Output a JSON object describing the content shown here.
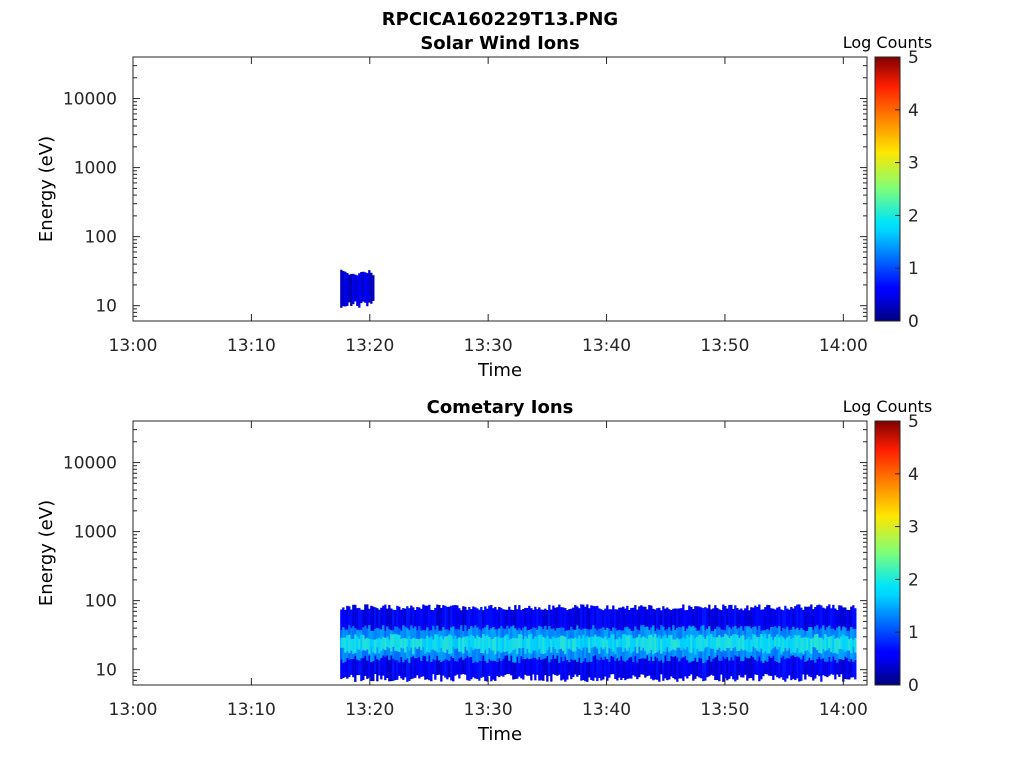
{
  "figure": {
    "title": "RPCICA160229T13.PNG"
  },
  "chart_data": [
    {
      "type": "heatmap",
      "title": "Solar Wind Ions",
      "xlabel": "Time",
      "ylabel": "Energy (eV)",
      "x_ticks": [
        "13:00",
        "13:10",
        "13:20",
        "13:30",
        "13:40",
        "13:50",
        "14:00"
      ],
      "xlim": [
        "13:00",
        "14:02"
      ],
      "y_scale": "log",
      "y_ticks": [
        "10",
        "100",
        "1000",
        "10000"
      ],
      "ylim": [
        6,
        40000
      ],
      "colorbar": {
        "label": "Log Counts",
        "ticks": [
          "0",
          "1",
          "2",
          "3",
          "4",
          "5"
        ],
        "range": [
          0,
          5
        ],
        "colormap": "jet"
      },
      "regions": [
        {
          "t_start": "13:17:30",
          "t_end": "13:20:15",
          "e_min": 11,
          "e_max": 30,
          "log_counts": 0.35
        },
        {
          "t_start": "13:17:40",
          "t_end": "13:20:05",
          "e_min": 40,
          "e_max": 80,
          "log_counts": 0.1,
          "sparse": true
        }
      ]
    },
    {
      "type": "heatmap",
      "title": "Cometary Ions",
      "xlabel": "Time",
      "ylabel": "Energy (eV)",
      "x_ticks": [
        "13:00",
        "13:10",
        "13:20",
        "13:30",
        "13:40",
        "13:50",
        "14:00"
      ],
      "xlim": [
        "13:00",
        "14:02"
      ],
      "y_scale": "log",
      "y_ticks": [
        "10",
        "100",
        "1000",
        "10000"
      ],
      "ylim": [
        6,
        40000
      ],
      "colorbar": {
        "label": "Log Counts",
        "ticks": [
          "0",
          "1",
          "2",
          "3",
          "4",
          "5"
        ],
        "range": [
          0,
          5
        ],
        "colormap": "jet"
      },
      "regions": [
        {
          "t_start": "13:17:30",
          "t_end": "14:01:00",
          "e_min": 8,
          "e_max": 80,
          "log_counts": 0.5
        },
        {
          "t_start": "13:17:30",
          "t_end": "14:01:00",
          "e_min": 15,
          "e_max": 40,
          "log_counts": 1.3
        },
        {
          "t_start": "13:17:30",
          "t_end": "14:01:00",
          "e_min": 20,
          "e_max": 30,
          "log_counts": 1.8
        }
      ]
    }
  ]
}
